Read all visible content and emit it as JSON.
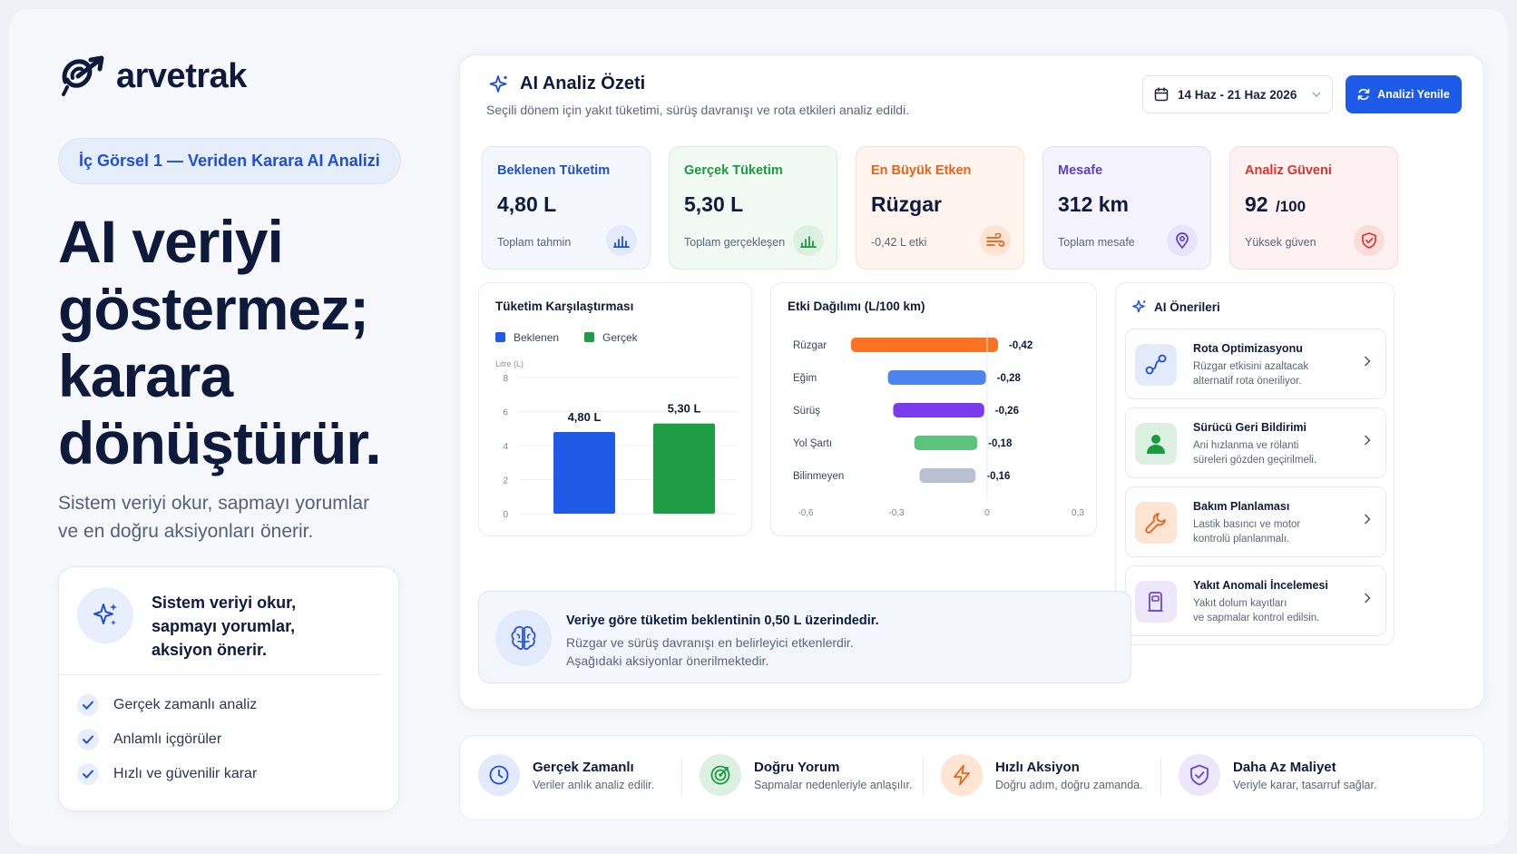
{
  "brand": {
    "name": "arvetrak"
  },
  "left": {
    "pill": "İç Görsel 1 — Veriden Karara AI Analizi",
    "headline": [
      "AI veriyi",
      "göstermez;",
      "karara",
      "dönüştürür."
    ],
    "subtext": [
      "Sistem veriyi okur, sapmayı yorumlar",
      "ve en doğru aksiyonları önerir."
    ],
    "card_title": [
      "Sistem veriyi okur,",
      "sapmayı yorumlar,",
      "aksiyon önerir."
    ],
    "card_items": [
      "Gerçek zamanlı analiz",
      "Anlamlı içgörüler",
      "Hızlı ve güvenilir karar"
    ]
  },
  "header": {
    "title": "AI Analiz Özeti",
    "subtitle": "Seçili dönem için yakıt tüketimi, sürüş davranışı ve rota etkileri analiz edildi.",
    "date_range": "14 Haz - 21 Haz 2026",
    "refresh_label": "Analizi Yenile"
  },
  "kpis": [
    {
      "label": "Beklenen Tüketim",
      "value": "4,80 L",
      "unit": "",
      "foot": "Toplam tahmin",
      "color": "#1f4fd8",
      "icon": "bar-chart-icon"
    },
    {
      "label": "Gerçek Tüketim",
      "value": "5,30 L",
      "unit": "",
      "foot": "Toplam gerçekleşen",
      "color": "#1c9a3e",
      "icon": "bar-chart-icon"
    },
    {
      "label": "En Büyük Etken",
      "value": "Rüzgar",
      "unit": "",
      "foot": "-0,42 L etki",
      "color": "#e8621a",
      "icon": "wind-icon"
    },
    {
      "label": "Mesafe",
      "value": "312 km",
      "unit": "",
      "foot": "Toplam mesafe",
      "color": "#5a3fc9",
      "icon": "location-pin-icon"
    },
    {
      "label": "Analiz Güveni",
      "value": "92",
      "unit": "/100",
      "foot": "Yüksek güven",
      "color": "#d9352b",
      "icon": "shield-icon"
    }
  ],
  "comparison_chart": {
    "title": "Tüketim Karşılaştırması",
    "legend": [
      "Beklenen",
      "Gerçek"
    ],
    "colors": [
      "#1f5ae6",
      "#1f9d45"
    ],
    "ylabel": "Litre (L)",
    "ticks": [
      "0",
      "2",
      "4",
      "6",
      "8"
    ],
    "labels": [
      "4,80 L",
      "5,30 L"
    ]
  },
  "impact_chart": {
    "title": "Etki Dağılımı (L/100 km)",
    "labels": [
      "-0,42",
      "-0,28",
      "-0,26",
      "-0,18",
      "-0,16"
    ],
    "colors": [
      "#fb7322",
      "#4a84ec",
      "#7c3aed",
      "#5cc37c",
      "#b9c0d0"
    ],
    "xticks": [
      "-0,6",
      "-0,3",
      "0",
      "0,3"
    ]
  },
  "chart_data": [
    {
      "type": "bar",
      "title": "Tüketim Karşılaştırması",
      "categories": [
        "Beklenen",
        "Gerçek"
      ],
      "values": [
        4.8,
        5.3
      ],
      "ylabel": "Litre (L)",
      "ylim": [
        0,
        8
      ]
    },
    {
      "type": "bar",
      "title": "Etki Dağılımı (L/100 km)",
      "orientation": "horizontal",
      "categories": [
        "Rüzgar",
        "Eğim",
        "Sürüş",
        "Yol Şartı",
        "Bilinmeyen"
      ],
      "values": [
        -0.42,
        -0.28,
        -0.26,
        -0.18,
        -0.16
      ],
      "xlim": [
        -0.6,
        0.3
      ]
    }
  ],
  "summary": {
    "headline": "Veriye göre tüketim beklentinin 0,50 L üzerindedir.",
    "line1": "Rüzgar ve sürüş davranışı en belirleyici etkenlerdir.",
    "line2": "Aşağıdaki aksiyonlar önerilmektedir."
  },
  "recommendations": {
    "title": "AI Önerileri",
    "items": [
      {
        "title": "Rota Optimizasyonu",
        "desc": [
          "Rüzgar etkisini azaltacak",
          "alternatif rota öneriliyor."
        ],
        "icon": "route-icon"
      },
      {
        "title": "Sürücü Geri Bildirimi",
        "desc": [
          "Ani hızlanma ve rölanti",
          "süreleri gözden geçirilmeli."
        ],
        "icon": "driver-icon"
      },
      {
        "title": "Bakım Planlaması",
        "desc": [
          "Lastik basıncı ve motor",
          "kontrolü planlanmalı."
        ],
        "icon": "wrench-icon"
      },
      {
        "title": "Yakıt Anomali İncelemesi",
        "desc": [
          "Yakıt dolum kayıtları",
          "ve sapmalar kontrol edilsin."
        ],
        "icon": "fuel-icon"
      }
    ]
  },
  "bottom": [
    {
      "title": "Gerçek Zamanlı",
      "desc": "Veriler anlık analiz edilir.",
      "icon": "clock-icon"
    },
    {
      "title": "Doğru Yorum",
      "desc": "Sapmalar nedenleriyle anlaşılır.",
      "icon": "target-icon"
    },
    {
      "title": "Hızlı Aksiyon",
      "desc": "Doğru adım, doğru zamanda.",
      "icon": "lightning-icon"
    },
    {
      "title": "Daha Az Maliyet",
      "desc": "Veriyle karar, tasarruf sağlar.",
      "icon": "shield-check-icon"
    }
  ]
}
